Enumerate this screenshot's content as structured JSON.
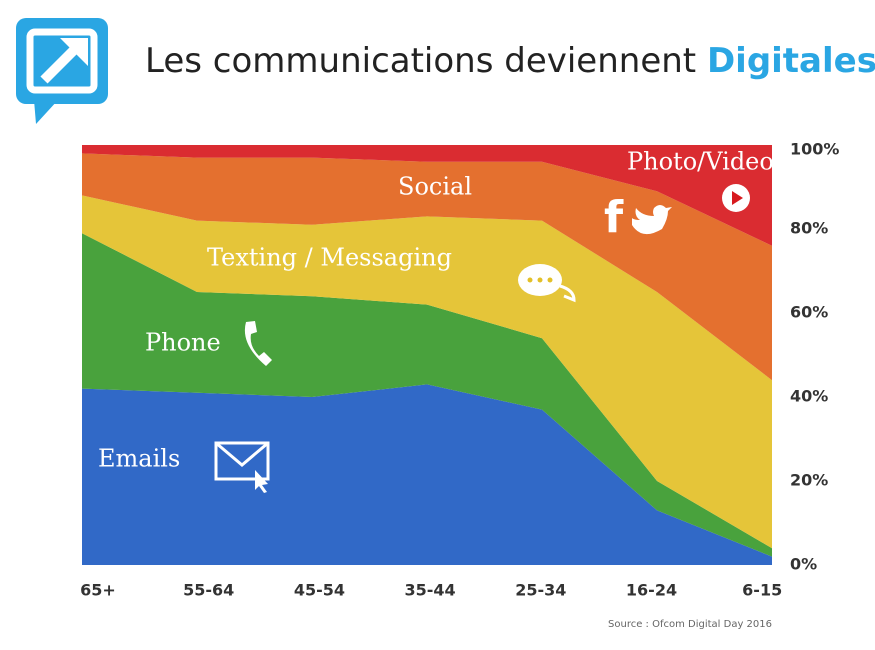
{
  "chart_data": {
    "type": "stacked-area",
    "title": "Les communications deviennent ",
    "title_highlight": "Digitales",
    "source": "Source : Ofcom Digital Day 2016",
    "categories": [
      "65+",
      "55-64",
      "45-54",
      "35-44",
      "25-34",
      "16-24",
      "6-15"
    ],
    "series": [
      {
        "name": "Emails",
        "color": "#1f5cc2",
        "values": [
          42,
          41,
          40,
          43,
          37,
          13,
          2
        ]
      },
      {
        "name": "Phone",
        "color": "#3a9a2c",
        "values": [
          37,
          24,
          24,
          19,
          17,
          7,
          2
        ]
      },
      {
        "name": "Texting / Messaging",
        "color": "#e3c028",
        "values": [
          9,
          17,
          17,
          21,
          28,
          45,
          40
        ]
      },
      {
        "name": "Social",
        "color": "#e2641d",
        "values": [
          10,
          15,
          16,
          13,
          14,
          24,
          32
        ]
      },
      {
        "name": "Photo/Video",
        "color": "#d71a1f",
        "values": [
          2,
          3,
          3,
          4,
          4,
          11,
          24
        ]
      }
    ],
    "ylim": [
      0,
      100
    ],
    "yticks": [
      {
        "value": 0,
        "label": "0%"
      },
      {
        "value": 20,
        "label": "20%"
      },
      {
        "value": 40,
        "label": "40%"
      },
      {
        "value": 60,
        "label": "60%"
      },
      {
        "value": 80,
        "label": "80%"
      },
      {
        "value": 100,
        "label": "100%"
      }
    ]
  }
}
